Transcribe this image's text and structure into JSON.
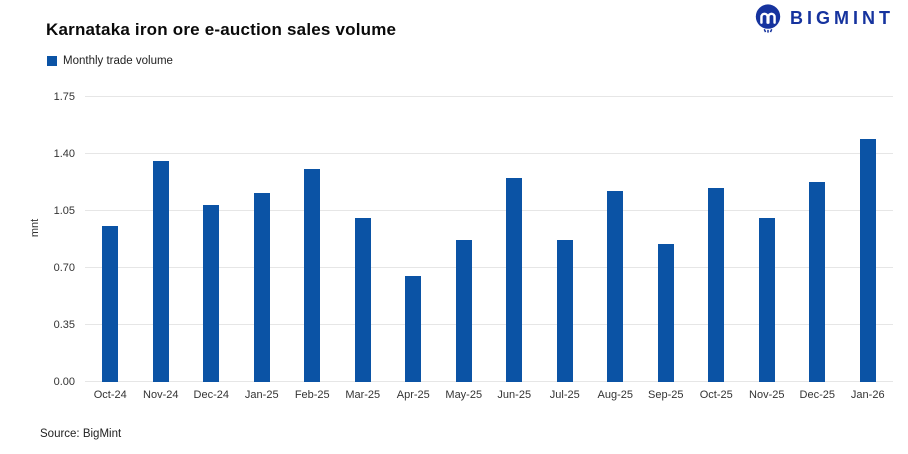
{
  "header": {
    "title": "Karnataka iron ore e-auction sales volume",
    "brand": {
      "name": "BIGMINT",
      "color": "#16339E"
    }
  },
  "legend": {
    "items": [
      {
        "label": "Monthly trade volume",
        "color": "#0B53A5"
      }
    ]
  },
  "chart_data": {
    "type": "bar",
    "title": "Karnataka iron ore e-auction sales volume",
    "xlabel": "",
    "ylabel": "mnt",
    "ylim": [
      0,
      1.75
    ],
    "ytick_labels": [
      "0.00",
      "0.35",
      "0.70",
      "1.05",
      "1.40",
      "1.75"
    ],
    "grid": true,
    "legend_position": "top-left",
    "bar_color": "#0B53A5",
    "gridline_color": "#e6e6e6",
    "categories": [
      "Oct-24",
      "Nov-24",
      "Dec-24",
      "Jan-25",
      "Feb-25",
      "Mar-25",
      "Apr-25",
      "May-25",
      "Jun-25",
      "Jul-25",
      "Aug-25",
      "Sep-25",
      "Oct-25",
      "Nov-25",
      "Dec-25",
      "Jan-26"
    ],
    "series": [
      {
        "name": "Monthly trade volume",
        "values": [
          0.96,
          1.36,
          1.09,
          1.16,
          1.31,
          1.01,
          0.65,
          0.87,
          1.25,
          0.87,
          1.17,
          0.85,
          1.19,
          1.01,
          1.23,
          1.49
        ]
      }
    ]
  },
  "footer": {
    "source": "Source: BigMint"
  }
}
